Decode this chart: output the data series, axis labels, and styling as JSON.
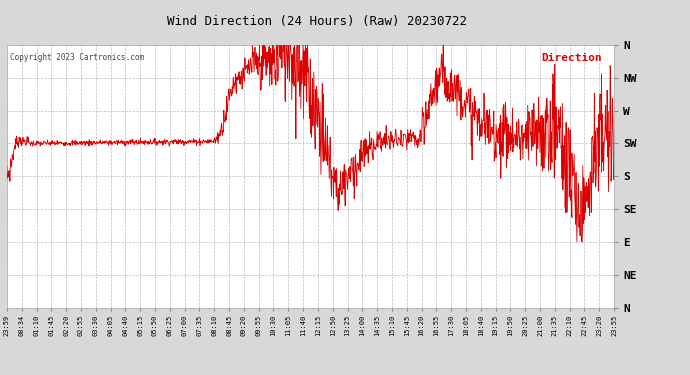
{
  "title": "Wind Direction (24 Hours) (Raw) 20230722",
  "copyright": "Copyright 2023 Cartronics.com",
  "legend_label": "Direction",
  "legend_color": "#dd0000",
  "line_color": "#dd0000",
  "background_color": "#d8d8d8",
  "plot_bg_color": "#ffffff",
  "grid_color": "#bbbbbb",
  "title_color": "#000000",
  "copyright_color": "#444444",
  "ytick_labels": [
    "N",
    "NW",
    "W",
    "SW",
    "S",
    "SE",
    "E",
    "NE",
    "N"
  ],
  "ytick_values": [
    360,
    315,
    270,
    225,
    180,
    135,
    90,
    45,
    0
  ],
  "ylim": [
    0,
    360
  ],
  "xtick_labels": [
    "23:59",
    "00:34",
    "01:10",
    "01:45",
    "02:20",
    "02:55",
    "03:30",
    "04:05",
    "04:40",
    "05:15",
    "05:50",
    "06:25",
    "07:00",
    "07:35",
    "08:10",
    "08:45",
    "09:20",
    "09:55",
    "10:30",
    "11:05",
    "11:40",
    "12:15",
    "12:50",
    "13:25",
    "14:00",
    "14:35",
    "15:10",
    "15:45",
    "16:20",
    "16:55",
    "17:30",
    "18:05",
    "18:40",
    "19:15",
    "19:50",
    "20:25",
    "21:00",
    "21:35",
    "22:10",
    "22:45",
    "23:20",
    "23:55"
  ],
  "segments": [
    [
      0,
      5,
      180,
      185,
      8
    ],
    [
      5,
      15,
      185,
      210,
      10
    ],
    [
      15,
      20,
      210,
      225,
      5
    ],
    [
      20,
      30,
      225,
      230,
      4
    ],
    [
      30,
      35,
      230,
      228,
      3
    ],
    [
      35,
      50,
      228,
      228,
      3
    ],
    [
      50,
      55,
      228,
      225,
      3
    ],
    [
      55,
      490,
      225,
      228,
      2
    ],
    [
      490,
      500,
      228,
      232,
      3
    ],
    [
      500,
      510,
      232,
      248,
      5
    ],
    [
      510,
      520,
      248,
      270,
      8
    ],
    [
      520,
      530,
      270,
      295,
      10
    ],
    [
      530,
      540,
      295,
      310,
      8
    ],
    [
      540,
      560,
      310,
      320,
      10
    ],
    [
      560,
      570,
      320,
      325,
      8
    ],
    [
      570,
      580,
      325,
      330,
      10
    ],
    [
      580,
      600,
      330,
      335,
      15
    ],
    [
      600,
      620,
      335,
      338,
      20
    ],
    [
      620,
      640,
      338,
      340,
      25
    ],
    [
      640,
      650,
      340,
      345,
      30
    ],
    [
      650,
      660,
      345,
      350,
      30
    ],
    [
      660,
      670,
      350,
      355,
      30
    ],
    [
      670,
      680,
      355,
      340,
      35
    ],
    [
      680,
      695,
      340,
      330,
      35
    ],
    [
      695,
      710,
      330,
      310,
      35
    ],
    [
      710,
      730,
      310,
      280,
      30
    ],
    [
      730,
      750,
      280,
      240,
      30
    ],
    [
      750,
      760,
      240,
      210,
      25
    ],
    [
      760,
      770,
      210,
      185,
      25
    ],
    [
      770,
      780,
      185,
      170,
      20
    ],
    [
      780,
      790,
      170,
      160,
      20
    ],
    [
      790,
      800,
      160,
      175,
      25
    ],
    [
      800,
      810,
      175,
      185,
      25
    ],
    [
      810,
      830,
      185,
      195,
      20
    ],
    [
      830,
      840,
      195,
      205,
      15
    ],
    [
      840,
      860,
      205,
      220,
      10
    ],
    [
      860,
      880,
      220,
      228,
      10
    ],
    [
      880,
      930,
      228,
      230,
      8
    ],
    [
      930,
      940,
      230,
      228,
      8
    ],
    [
      940,
      960,
      228,
      232,
      8
    ],
    [
      960,
      980,
      232,
      228,
      8
    ],
    [
      980,
      1000,
      228,
      270,
      15
    ],
    [
      1000,
      1010,
      270,
      295,
      15
    ],
    [
      1010,
      1020,
      295,
      310,
      15
    ],
    [
      1020,
      1040,
      310,
      315,
      20
    ],
    [
      1040,
      1060,
      315,
      305,
      20
    ],
    [
      1060,
      1080,
      305,
      290,
      15
    ],
    [
      1080,
      1100,
      290,
      270,
      15
    ],
    [
      1100,
      1120,
      270,
      255,
      20
    ],
    [
      1120,
      1140,
      255,
      245,
      20
    ],
    [
      1140,
      1160,
      245,
      240,
      20
    ],
    [
      1160,
      1200,
      240,
      235,
      20
    ],
    [
      1200,
      1230,
      235,
      230,
      20
    ],
    [
      1230,
      1260,
      230,
      235,
      25
    ],
    [
      1260,
      1280,
      235,
      245,
      30
    ],
    [
      1280,
      1295,
      245,
      255,
      35
    ],
    [
      1295,
      1310,
      255,
      240,
      40
    ],
    [
      1310,
      1325,
      240,
      200,
      40
    ],
    [
      1325,
      1340,
      200,
      170,
      40
    ],
    [
      1340,
      1355,
      170,
      135,
      35
    ],
    [
      1355,
      1370,
      135,
      155,
      35
    ],
    [
      1370,
      1390,
      155,
      215,
      35
    ],
    [
      1390,
      1410,
      215,
      230,
      35
    ],
    [
      1410,
      1440,
      230,
      225,
      35
    ]
  ]
}
